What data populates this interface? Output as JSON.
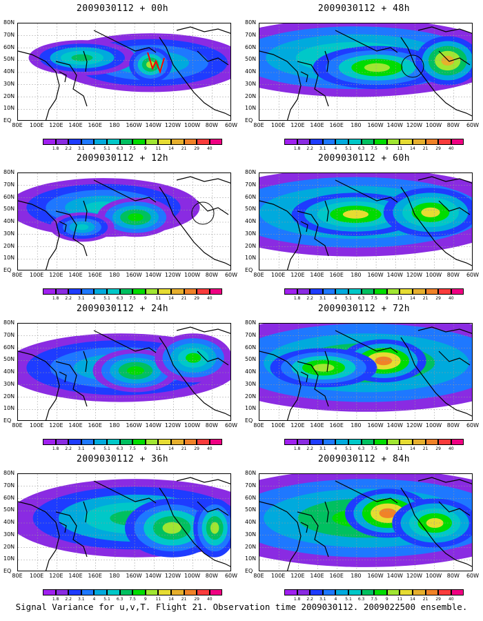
{
  "figure": {
    "caption": "Signal Variance for u,v,T. Flight 21. Observation time 2009030112. 2009022500 ensemble.",
    "y_axis_labels": [
      "80N",
      "70N",
      "60N",
      "50N",
      "40N",
      "30N",
      "20N",
      "10N",
      "EQ"
    ],
    "x_axis_labels": [
      "80E",
      "100E",
      "120E",
      "140E",
      "160E",
      "180",
      "160W",
      "140W",
      "120W",
      "100W",
      "80W",
      "60W"
    ],
    "colorbar": {
      "levels": [
        "1.8",
        "2.2",
        "3.1",
        "4",
        "5.1",
        "6.3",
        "7.5",
        "9",
        "11",
        "14",
        "21",
        "29",
        "40"
      ],
      "colors": [
        "#a020f0",
        "#8a2be2",
        "#1e3cff",
        "#1e78ff",
        "#00aadd",
        "#00c8c8",
        "#00c060",
        "#00dc00",
        "#a0e632",
        "#e6dc32",
        "#e6af2d",
        "#f08228",
        "#fa3c3c",
        "#f00082"
      ]
    },
    "panels": [
      {
        "title": "2009030112 + 00h",
        "forecast_hour": 0,
        "observation_markers": "red-flight-track-near-140W-50N"
      },
      {
        "title": "2009030112 + 48h",
        "forecast_hour": 48,
        "observation_markers": "circle-near-120W-40N"
      },
      {
        "title": "2009030112 + 12h",
        "forecast_hour": 12,
        "observation_markers": "circle-near-80W-45N"
      },
      {
        "title": "2009030112 + 60h",
        "forecast_hour": 60,
        "observation_markers": "none"
      },
      {
        "title": "2009030112 + 24h",
        "forecast_hour": 24,
        "observation_markers": "none"
      },
      {
        "title": "2009030112 + 72h",
        "forecast_hour": 72,
        "observation_markers": "none"
      },
      {
        "title": "2009030112 + 36h",
        "forecast_hour": 36,
        "observation_markers": "none"
      },
      {
        "title": "2009030112 + 84h",
        "forecast_hour": 84,
        "observation_markers": "none"
      }
    ]
  }
}
